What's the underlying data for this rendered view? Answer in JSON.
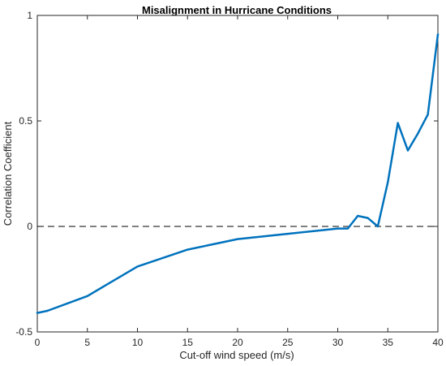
{
  "chart_data": {
    "type": "line",
    "title": "Misalignment in Hurricane Conditions",
    "xlabel": "Cut-off wind speed (m/s)",
    "ylabel": "Correlation Coefficient",
    "xlim": [
      0,
      40
    ],
    "ylim": [
      -0.5,
      1
    ],
    "xticks": [
      0,
      5,
      10,
      15,
      20,
      25,
      30,
      35,
      40
    ],
    "yticks": [
      -0.5,
      0,
      0.5,
      1
    ],
    "xtick_labels": [
      "0",
      "5",
      "10",
      "15",
      "20",
      "25",
      "30",
      "35",
      "40"
    ],
    "ytick_labels": [
      "-0.5",
      "0",
      "0.5",
      "1"
    ],
    "grid": false,
    "reference_line": {
      "y": 0,
      "style": "dashed",
      "color": "#000000"
    },
    "series": [
      {
        "color": "#0072bd",
        "x": [
          0,
          1,
          5,
          10,
          15,
          20,
          25,
          30,
          31,
          32,
          33,
          34,
          35,
          36,
          37,
          38,
          39,
          40
        ],
        "y": [
          -0.41,
          -0.4,
          -0.33,
          -0.19,
          -0.11,
          -0.06,
          -0.035,
          -0.01,
          -0.01,
          0.05,
          0.04,
          0.0,
          0.21,
          0.49,
          0.36,
          0.44,
          0.53,
          0.91
        ]
      }
    ]
  }
}
